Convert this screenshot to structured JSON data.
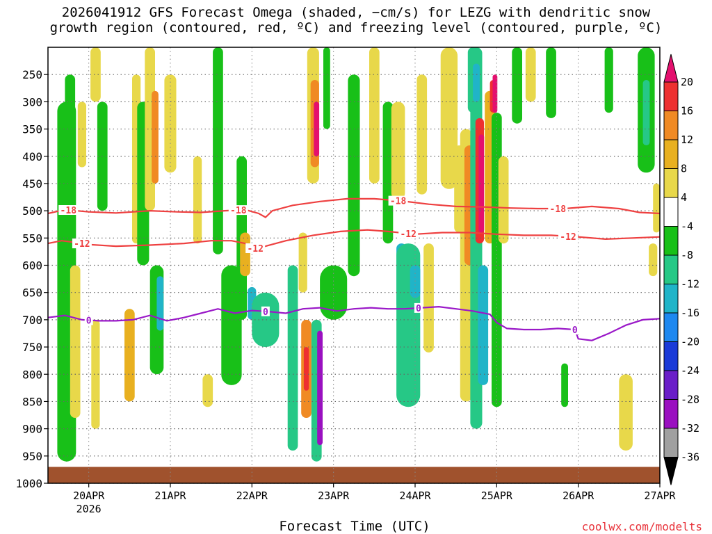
{
  "chart_data": {
    "type": "heatmap",
    "title_line1": "2026041912 GFS Forecast Omega (shaded, −cm/s) for LEZG with dendritic snow",
    "title_line2": "growth region (contoured, red, ºC) and freezing level (contoured, purple, ºC)",
    "xlabel": "Forecast Time (UTC)",
    "credit": "coolwx.com/modelts",
    "x_ticks": [
      "20APR",
      "21APR",
      "22APR",
      "23APR",
      "24APR",
      "25APR",
      "26APR",
      "27APR"
    ],
    "x_tick_hours": [
      12,
      36,
      60,
      84,
      108,
      132,
      156,
      180
    ],
    "x_year_label": "2026",
    "x_range_hours": [
      0,
      180
    ],
    "y_ticks": [
      250,
      300,
      350,
      400,
      450,
      500,
      550,
      600,
      650,
      700,
      750,
      800,
      850,
      900,
      950,
      1000
    ],
    "y_range_hpa": [
      200,
      1000
    ],
    "surface_pressure_hpa": 970,
    "colorbar_levels": [
      20,
      16,
      12,
      8,
      4,
      -4,
      -8,
      -12,
      -16,
      -20,
      -24,
      -28,
      -32,
      -36
    ],
    "colorbar_colors": [
      "#e4106e",
      "#ee3030",
      "#f08a24",
      "#e8b020",
      "#e8d84a",
      "#ffffff",
      "#18c018",
      "#26c886",
      "#20b4c8",
      "#1e88f0",
      "#1a3ad8",
      "#6a1ec8",
      "#9a10c0",
      "#a0a0a0"
    ],
    "colors": {
      "dgz": "#ee4040",
      "freezing": "#9a18c8",
      "ground": "#a0522d",
      "grid": "#666666"
    },
    "dendritic_contours": [
      {
        "label": "-18",
        "hours": [
          0,
          5,
          12,
          20,
          30,
          38,
          45,
          52,
          58,
          62,
          64,
          66,
          72,
          80,
          88,
          96,
          104,
          112,
          120,
          128,
          136,
          144,
          152,
          160,
          168,
          174,
          180
        ],
        "hpa": [
          505,
          498,
          502,
          504,
          500,
          502,
          503,
          500,
          498,
          505,
          512,
          500,
          490,
          483,
          478,
          478,
          482,
          488,
          492,
          493,
          495,
          496,
          496,
          492,
          496,
          503,
          505
        ],
        "label_hours": [
          6,
          56,
          103,
          150
        ]
      },
      {
        "label": "-12",
        "hours": [
          0,
          4,
          8,
          12,
          20,
          30,
          40,
          48,
          54,
          58,
          60,
          64,
          70,
          78,
          86,
          94,
          100,
          108,
          116,
          124,
          132,
          140,
          148,
          156,
          164,
          172,
          180
        ],
        "hpa": [
          560,
          555,
          558,
          562,
          565,
          563,
          560,
          555,
          555,
          560,
          570,
          565,
          555,
          545,
          538,
          535,
          538,
          543,
          540,
          540,
          543,
          545,
          545,
          548,
          552,
          550,
          548
        ],
        "label_hours": [
          10,
          61,
          106,
          153
        ]
      }
    ],
    "freezing_contour": {
      "label": "0",
      "hours": [
        0,
        5,
        10,
        15,
        20,
        25,
        30,
        35,
        40,
        45,
        50,
        55,
        60,
        65,
        70,
        75,
        80,
        85,
        90,
        95,
        100,
        105,
        110,
        115,
        120,
        125,
        130,
        132,
        135,
        140,
        145,
        150,
        155,
        156,
        160,
        165,
        170,
        175,
        180
      ],
      "hpa": [
        696,
        692,
        700,
        702,
        702,
        700,
        692,
        702,
        696,
        688,
        680,
        688,
        683,
        685,
        688,
        680,
        678,
        684,
        680,
        678,
        680,
        680,
        678,
        676,
        680,
        684,
        690,
        705,
        716,
        718,
        718,
        716,
        718,
        735,
        738,
        725,
        710,
        700,
        698
      ],
      "label_hours": [
        12,
        64,
        109,
        155
      ]
    },
    "omega_cells": [
      {
        "t": 5.5,
        "p0": 700,
        "p1": 960,
        "w": 2.2,
        "v": -32
      },
      {
        "t": 5.5,
        "p0": 480,
        "p1": 960,
        "w": 3.5,
        "v": -12
      },
      {
        "t": 5.5,
        "p0": 300,
        "p1": 960,
        "w": 5.5,
        "v": -6
      },
      {
        "t": 6.5,
        "p0": 250,
        "p1": 500,
        "w": 3,
        "v": -6
      },
      {
        "t": 8,
        "p0": 600,
        "p1": 880,
        "w": 3,
        "v": 6
      },
      {
        "t": 10,
        "p0": 300,
        "p1": 420,
        "w": 2.5,
        "v": 6
      },
      {
        "t": 14,
        "p0": 200,
        "p1": 300,
        "w": 3,
        "v": 5
      },
      {
        "t": 14,
        "p0": 700,
        "p1": 900,
        "w": 2.5,
        "v": 7
      },
      {
        "t": 16,
        "p0": 300,
        "p1": 500,
        "w": 3,
        "v": -6
      },
      {
        "t": 24,
        "p0": 680,
        "p1": 850,
        "w": 3,
        "v": 9
      },
      {
        "t": 26,
        "p0": 250,
        "p1": 560,
        "w": 2.5,
        "v": 5
      },
      {
        "t": 28,
        "p0": 300,
        "p1": 600,
        "w": 3.5,
        "v": -6
      },
      {
        "t": 30,
        "p0": 200,
        "p1": 500,
        "w": 3,
        "v": 6
      },
      {
        "t": 31.5,
        "p0": 280,
        "p1": 450,
        "w": 2,
        "v": 12
      },
      {
        "t": 32,
        "p0": 600,
        "p1": 800,
        "w": 4,
        "v": -8
      },
      {
        "t": 33,
        "p0": 620,
        "p1": 720,
        "w": 2,
        "v": -14
      },
      {
        "t": 36,
        "p0": 250,
        "p1": 430,
        "w": 3.5,
        "v": 5
      },
      {
        "t": 44,
        "p0": 400,
        "p1": 560,
        "w": 2.5,
        "v": 5
      },
      {
        "t": 47,
        "p0": 800,
        "p1": 860,
        "w": 3,
        "v": 6
      },
      {
        "t": 50,
        "p0": 200,
        "p1": 580,
        "w": 3,
        "v": -6
      },
      {
        "t": 54,
        "p0": 600,
        "p1": 820,
        "w": 6,
        "v": -8
      },
      {
        "t": 57,
        "p0": 400,
        "p1": 700,
        "w": 3,
        "v": -7
      },
      {
        "t": 58,
        "p0": 540,
        "p1": 620,
        "w": 3,
        "v": 8
      },
      {
        "t": 60,
        "p0": 640,
        "p1": 700,
        "w": 2.5,
        "v": -14
      },
      {
        "t": 64,
        "p0": 650,
        "p1": 750,
        "w": 8,
        "v": -9
      },
      {
        "t": 72,
        "p0": 600,
        "p1": 940,
        "w": 3,
        "v": -9
      },
      {
        "t": 75,
        "p0": 540,
        "p1": 650,
        "w": 2.5,
        "v": 7
      },
      {
        "t": 76,
        "p0": 700,
        "p1": 880,
        "w": 3,
        "v": 14
      },
      {
        "t": 76,
        "p0": 750,
        "p1": 830,
        "w": 1.5,
        "v": 18
      },
      {
        "t": 78,
        "p0": 200,
        "p1": 450,
        "w": 3.5,
        "v": 6
      },
      {
        "t": 78.5,
        "p0": 260,
        "p1": 420,
        "w": 2.5,
        "v": 12
      },
      {
        "t": 79,
        "p0": 300,
        "p1": 400,
        "w": 1.6,
        "v": 20
      },
      {
        "t": 79,
        "p0": 700,
        "p1": 960,
        "w": 3,
        "v": -10
      },
      {
        "t": 80,
        "p0": 720,
        "p1": 930,
        "w": 1.6,
        "v": -30
      },
      {
        "t": 82,
        "p0": 200,
        "p1": 350,
        "w": 2,
        "v": -6
      },
      {
        "t": 84,
        "p0": 600,
        "p1": 700,
        "w": 8,
        "v": -8
      },
      {
        "t": 90,
        "p0": 250,
        "p1": 620,
        "w": 3.5,
        "v": -7
      },
      {
        "t": 96,
        "p0": 200,
        "p1": 450,
        "w": 3,
        "v": 5
      },
      {
        "t": 100,
        "p0": 300,
        "p1": 560,
        "w": 3,
        "v": -7
      },
      {
        "t": 103,
        "p0": 300,
        "p1": 480,
        "w": 4,
        "v": 5
      },
      {
        "t": 104,
        "p0": 560,
        "p1": 680,
        "w": 3,
        "v": -14
      },
      {
        "t": 106,
        "p0": 560,
        "p1": 860,
        "w": 7,
        "v": -9
      },
      {
        "t": 108,
        "p0": 600,
        "p1": 660,
        "w": 3,
        "v": -15
      },
      {
        "t": 110,
        "p0": 250,
        "p1": 470,
        "w": 3,
        "v": 6
      },
      {
        "t": 112,
        "p0": 560,
        "p1": 760,
        "w": 3,
        "v": 6
      },
      {
        "t": 118,
        "p0": 200,
        "p1": 460,
        "w": 5,
        "v": 6
      },
      {
        "t": 121,
        "p0": 380,
        "p1": 540,
        "w": 3,
        "v": 6
      },
      {
        "t": 123,
        "p0": 350,
        "p1": 850,
        "w": 3.5,
        "v": 6
      },
      {
        "t": 124,
        "p0": 380,
        "p1": 600,
        "w": 3,
        "v": 12
      },
      {
        "t": 125,
        "p0": 200,
        "p1": 320,
        "w": 3,
        "v": -10
      },
      {
        "t": 126,
        "p0": 200,
        "p1": 900,
        "w": 3.5,
        "v": -9
      },
      {
        "t": 126,
        "p0": 230,
        "p1": 300,
        "w": 2,
        "v": -16
      },
      {
        "t": 127,
        "p0": 330,
        "p1": 560,
        "w": 2.5,
        "v": 16
      },
      {
        "t": 127.5,
        "p0": 360,
        "p1": 540,
        "w": 1.6,
        "v": 20
      },
      {
        "t": 128,
        "p0": 600,
        "p1": 820,
        "w": 3,
        "v": -14
      },
      {
        "t": 130,
        "p0": 280,
        "p1": 560,
        "w": 3,
        "v": 8
      },
      {
        "t": 131,
        "p0": 260,
        "p1": 320,
        "w": 2,
        "v": 16
      },
      {
        "t": 131.5,
        "p0": 250,
        "p1": 320,
        "w": 1.4,
        "v": 20
      },
      {
        "t": 132,
        "p0": 320,
        "p1": 860,
        "w": 3,
        "v": -8
      },
      {
        "t": 134,
        "p0": 400,
        "p1": 560,
        "w": 3,
        "v": 5
      },
      {
        "t": 138,
        "p0": 200,
        "p1": 340,
        "w": 3,
        "v": -6
      },
      {
        "t": 142,
        "p0": 200,
        "p1": 300,
        "w": 3,
        "v": 5
      },
      {
        "t": 148,
        "p0": 200,
        "p1": 330,
        "w": 3,
        "v": -6
      },
      {
        "t": 152,
        "p0": 780,
        "p1": 860,
        "w": 2,
        "v": -7
      },
      {
        "t": 165,
        "p0": 200,
        "p1": 320,
        "w": 2.5,
        "v": -6
      },
      {
        "t": 170,
        "p0": 800,
        "p1": 940,
        "w": 4,
        "v": 5
      },
      {
        "t": 176,
        "p0": 200,
        "p1": 430,
        "w": 5,
        "v": -7
      },
      {
        "t": 176,
        "p0": 260,
        "p1": 380,
        "w": 2,
        "v": -12
      },
      {
        "t": 178,
        "p0": 560,
        "p1": 620,
        "w": 2.5,
        "v": 6
      },
      {
        "t": 179,
        "p0": 450,
        "p1": 540,
        "w": 2,
        "v": 5
      }
    ]
  }
}
